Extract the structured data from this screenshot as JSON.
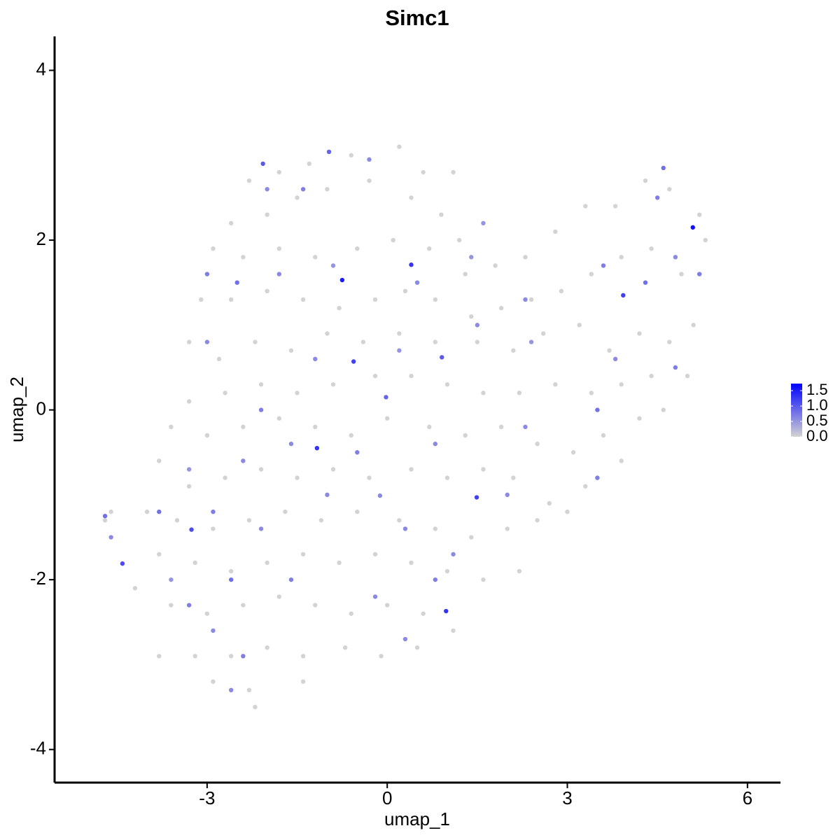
{
  "chart_data": {
    "type": "scatter",
    "title": "Simc1",
    "x_label": "umap_1",
    "y_label": "umap_2",
    "x": [
      -2.3,
      -1.8,
      -1.3,
      -0.6,
      0.2,
      0.6,
      1.1,
      -2.6,
      -2.0,
      -1.5,
      -1.0,
      -0.3,
      0.4,
      0.9,
      1.2,
      -2.9,
      -2.4,
      -1.8,
      -1.2,
      -0.5,
      0.1,
      0.7,
      1.3,
      1.8,
      2.3,
      2.8,
      3.3,
      3.8,
      4.3,
      4.7,
      5.2,
      5.3,
      4.9,
      4.4,
      3.9,
      3.4,
      2.9,
      2.4,
      1.9,
      1.4,
      0.8,
      0.3,
      -0.2,
      -0.8,
      -1.4,
      -2.0,
      -2.6,
      -3.1,
      -3.3,
      -2.8,
      -2.2,
      -1.6,
      -1.0,
      -0.4,
      0.2,
      0.8,
      1.5,
      2.1,
      2.6,
      3.2,
      3.7,
      4.2,
      4.7,
      5.1,
      5.0,
      4.4,
      3.9,
      3.4,
      2.8,
      2.2,
      1.6,
      1.0,
      0.4,
      -0.2,
      -0.9,
      -1.5,
      -2.1,
      -2.7,
      -3.3,
      -3.6,
      -3.0,
      -2.4,
      -1.8,
      -1.2,
      -0.6,
      0.0,
      0.7,
      1.3,
      1.9,
      2.5,
      3.1,
      3.6,
      4.2,
      4.6,
      3.9,
      3.3,
      2.7,
      2.1,
      1.6,
      1.0,
      0.4,
      -0.3,
      -0.9,
      -1.5,
      -2.1,
      -2.7,
      -3.3,
      -3.8,
      -4.0,
      -3.5,
      -2.9,
      -2.3,
      -1.7,
      -1.1,
      -0.5,
      0.2,
      0.8,
      1.4,
      2.0,
      2.5,
      3.0,
      2.2,
      1.6,
      1.0,
      0.4,
      -0.2,
      -0.8,
      -1.4,
      -2.0,
      -2.6,
      -3.2,
      -3.8,
      -4.2,
      -3.6,
      -3.0,
      -2.4,
      -1.8,
      -1.2,
      -0.6,
      0.0,
      0.6,
      1.1,
      0.5,
      -0.1,
      -0.7,
      -1.4,
      -2.0,
      -2.6,
      -3.2,
      -3.8,
      -2.9,
      -2.3,
      -1.4,
      -2.2,
      -4.7,
      -4.6,
      -2.0,
      -1.4,
      -0.3,
      1.6,
      -3.0,
      -2.5,
      -1.8,
      -0.9,
      0.5,
      1.4,
      2.3,
      3.6,
      4.3,
      4.8,
      5.2,
      4.6,
      4.5,
      -3.0,
      -2.1,
      -1.2,
      0.2,
      1.5,
      2.4,
      3.8,
      4.8,
      3.5,
      2.3,
      0.8,
      -0.5,
      -1.6,
      -2.4,
      -3.3,
      -2.9,
      -3.8,
      -2.1,
      -1.0,
      0.3,
      1.1,
      -0.2,
      -1.6,
      -2.6,
      -3.3,
      -2.9,
      -2.4,
      -2.6,
      0.3,
      0.8,
      2.0,
      3.5,
      -4.6,
      -4.7,
      -3.6,
      -0.75,
      0.4,
      5.09,
      -1.17,
      1.49,
      0.98,
      -4.41,
      -3.26,
      -0.56,
      3.93,
      0.91,
      -0.02,
      -2.07,
      -0.97,
      -0.12
    ],
    "y": [
      2.7,
      2.8,
      2.9,
      3.0,
      3.1,
      2.8,
      2.8,
      2.2,
      2.3,
      2.5,
      2.6,
      2.7,
      2.5,
      2.3,
      2.0,
      1.9,
      1.8,
      1.9,
      1.8,
      1.9,
      2.0,
      1.9,
      1.6,
      1.7,
      1.8,
      2.1,
      2.4,
      2.4,
      2.7,
      2.6,
      2.3,
      2.0,
      1.6,
      1.9,
      1.8,
      1.6,
      1.4,
      1.3,
      1.2,
      1.1,
      1.3,
      1.4,
      1.3,
      1.2,
      1.3,
      1.4,
      1.3,
      1.3,
      0.8,
      0.6,
      0.8,
      0.7,
      0.9,
      0.8,
      0.9,
      0.8,
      0.8,
      0.7,
      0.9,
      1.0,
      0.7,
      0.9,
      0.8,
      1.0,
      0.4,
      0.4,
      0.3,
      0.2,
      0.3,
      0.2,
      0.2,
      0.3,
      0.4,
      0.4,
      0.3,
      0.2,
      0.3,
      0.2,
      0.1,
      -0.2,
      -0.3,
      -0.2,
      -0.1,
      -0.2,
      -0.3,
      -0.1,
      -0.2,
      -0.3,
      -0.2,
      -0.4,
      -0.5,
      -0.3,
      -0.1,
      0.0,
      -0.6,
      -0.9,
      -1.1,
      -0.8,
      -0.7,
      -0.8,
      -0.7,
      -0.8,
      -0.7,
      -0.8,
      -0.7,
      -0.8,
      -0.9,
      -0.6,
      -1.2,
      -1.3,
      -1.4,
      -1.3,
      -1.2,
      -1.3,
      -1.2,
      -1.3,
      -1.4,
      -1.5,
      -1.4,
      -1.3,
      -1.2,
      -1.9,
      -2.0,
      -1.9,
      -1.8,
      -1.7,
      -1.8,
      -1.7,
      -1.8,
      -1.9,
      -1.8,
      -1.7,
      -2.1,
      -2.3,
      -2.4,
      -2.3,
      -2.2,
      -2.3,
      -2.4,
      -2.3,
      -2.4,
      -2.6,
      -2.8,
      -2.9,
      -2.8,
      -2.9,
      -2.8,
      -2.9,
      -2.9,
      -2.9,
      -3.2,
      -3.3,
      -3.2,
      -3.5,
      -1.3,
      -1.2,
      2.6,
      2.6,
      2.95,
      2.2,
      1.6,
      1.5,
      1.6,
      1.7,
      1.5,
      1.8,
      1.3,
      1.7,
      1.5,
      1.8,
      1.6,
      2.85,
      2.5,
      0.8,
      0.0,
      0.6,
      0.7,
      1.0,
      0.8,
      0.6,
      0.5,
      0.0,
      -0.2,
      -0.4,
      -0.5,
      -0.4,
      -0.6,
      -0.7,
      -1.2,
      -1.2,
      -1.4,
      -1.0,
      -1.4,
      -1.7,
      -2.2,
      -2.0,
      -2.0,
      -2.3,
      -2.6,
      -2.9,
      -3.3,
      -2.7,
      -2.0,
      -1.0,
      -0.8,
      -1.5,
      -1.25,
      -2.0,
      1.53,
      1.71,
      2.15,
      -0.45,
      -1.03,
      -2.37,
      -1.81,
      -1.41,
      0.57,
      1.35,
      0.62,
      0.15,
      2.9,
      3.04,
      -1.01
    ],
    "values": [
      0,
      0,
      0,
      0,
      0,
      0,
      0,
      0,
      0,
      0,
      0,
      0,
      0,
      0,
      0,
      0,
      0,
      0,
      0,
      0,
      0,
      0,
      0,
      0,
      0,
      0,
      0,
      0,
      0,
      0,
      0,
      0,
      0,
      0,
      0,
      0,
      0,
      0,
      0,
      0,
      0,
      0,
      0,
      0,
      0,
      0,
      0,
      0,
      0,
      0,
      0,
      0,
      0,
      0,
      0,
      0,
      0,
      0,
      0,
      0,
      0,
      0,
      0,
      0,
      0,
      0,
      0,
      0,
      0,
      0,
      0,
      0,
      0,
      0,
      0,
      0,
      0,
      0,
      0,
      0,
      0,
      0,
      0,
      0,
      0,
      0,
      0,
      0,
      0,
      0,
      0,
      0,
      0,
      0,
      0,
      0,
      0,
      0,
      0,
      0,
      0,
      0,
      0,
      0,
      0,
      0,
      0,
      0,
      0,
      0,
      0,
      0,
      0,
      0,
      0,
      0,
      0,
      0,
      0,
      0,
      0,
      0,
      0,
      0,
      0,
      0,
      0,
      0,
      0,
      0,
      0,
      0,
      0,
      0,
      0,
      0,
      0,
      0,
      0,
      0,
      0,
      0,
      0,
      0,
      0,
      0,
      0,
      0,
      0,
      0,
      0,
      0,
      0,
      0,
      0,
      0,
      0.6,
      0.7,
      0.6,
      0.5,
      0.7,
      0.8,
      0.6,
      0.5,
      0.6,
      0.5,
      0.6,
      0.7,
      0.8,
      0.6,
      0.7,
      0.8,
      0.7,
      0.6,
      0.7,
      0.6,
      0.5,
      0.6,
      0.5,
      0.6,
      0.7,
      0.8,
      0.6,
      0.6,
      0.7,
      0.6,
      0.6,
      0.5,
      0.7,
      0.8,
      0.6,
      0.6,
      0.6,
      0.6,
      0.6,
      0.7,
      0.8,
      0.7,
      0.6,
      0.7,
      0.6,
      0.6,
      0.7,
      0.6,
      0.7,
      0.6,
      0.8,
      0.5,
      1.5,
      1.3,
      1.6,
      1.3,
      1.2,
      1.3,
      1.1,
      1.1,
      1.2,
      1.2,
      1.0,
      0.9,
      1.0,
      0.9,
      0.6
    ],
    "xlim": [
      -5.54,
      6.55
    ],
    "ylim": [
      -4.39,
      4.4
    ],
    "xticks": [
      -3,
      0,
      3,
      6
    ],
    "yticks": [
      -4,
      -2,
      0,
      2,
      4
    ],
    "colorbar": {
      "lim": [
        0,
        1.73
      ],
      "low_color": "#d3d3d3",
      "high_color": "#0000ff",
      "ticks": [
        {
          "value": 0,
          "label": "0.0"
        },
        {
          "value": 0.5,
          "label": "0.5"
        },
        {
          "value": 1.0,
          "label": "1.0"
        },
        {
          "value": 1.5,
          "label": "1.5"
        }
      ]
    }
  }
}
